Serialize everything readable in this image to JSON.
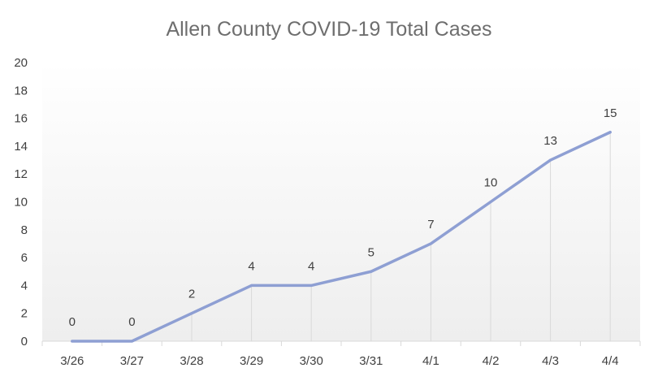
{
  "chart_data": {
    "type": "line",
    "title": "Allen County COVID-19 Total Cases",
    "categories": [
      "3/26",
      "3/27",
      "3/28",
      "3/29",
      "3/30",
      "3/31",
      "4/1",
      "4/2",
      "4/3",
      "4/4"
    ],
    "series": [
      {
        "values": [
          0,
          0,
          2,
          4,
          4,
          5,
          7,
          10,
          13,
          15
        ]
      }
    ],
    "yticks": [
      0,
      2,
      4,
      6,
      8,
      10,
      12,
      14,
      16,
      18,
      20
    ],
    "ylim": [
      0,
      20
    ],
    "xlabel": "",
    "ylabel": "",
    "grid": false,
    "drop_lines": true,
    "data_labels": true,
    "legend": "none",
    "colors": {
      "line": "#8e9fd3",
      "drop_line": "#d9d9d9",
      "plot_bg_top": "#ffffff",
      "plot_bg_bottom": "#eeeeee",
      "axis": "#d9d9d9",
      "title": "#6e6e6e",
      "text": "#404040"
    }
  }
}
